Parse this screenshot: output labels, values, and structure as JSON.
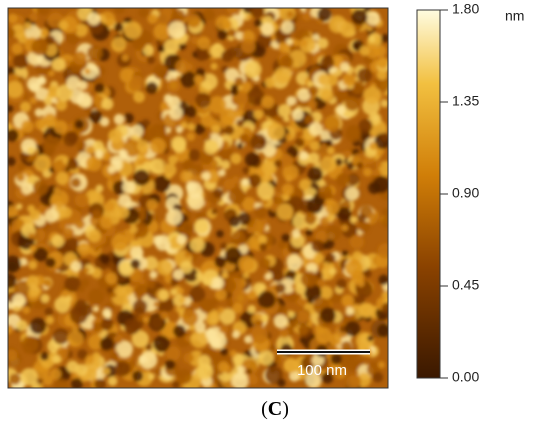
{
  "image": {
    "scale_bar_label": "100 nm"
  },
  "colorbar": {
    "unit": "nm",
    "lim": [
      0,
      1.8
    ],
    "ticks": [
      {
        "value": 1.8,
        "label": "1.80"
      },
      {
        "value": 1.35,
        "label": "1.35"
      },
      {
        "value": 0.9,
        "label": "0.90"
      },
      {
        "value": 0.45,
        "label": "0.45"
      },
      {
        "value": 0,
        "label": "0.00"
      }
    ]
  },
  "caption": {
    "open": "(",
    "letter": "C",
    "close": ")"
  }
}
